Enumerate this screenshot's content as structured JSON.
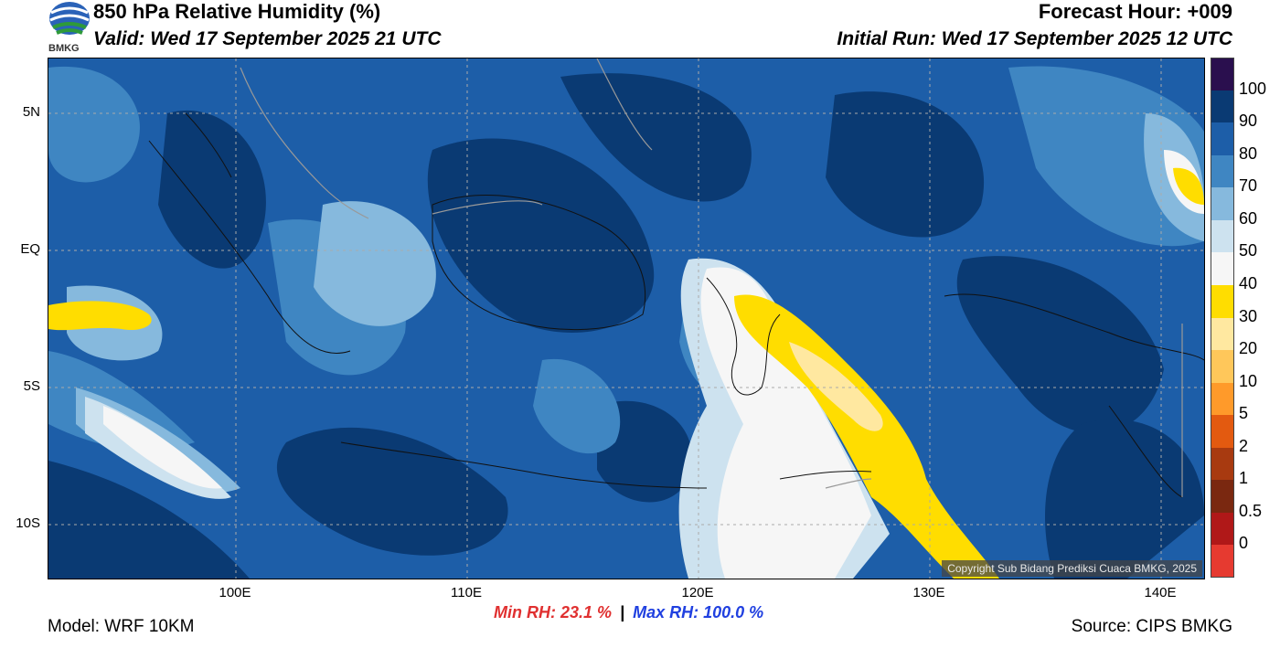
{
  "header": {
    "title": "850 hPa Relative Humidity (%)",
    "valid": "Valid: Wed 17 September 2025 21 UTC",
    "forecast_hour": "Forecast Hour: +009",
    "initial_run": "Initial Run: Wed 17 September 2025 12 UTC",
    "logo_text": "BMKG"
  },
  "map": {
    "copyright": "Copyright Sub Bidang Prediksi Cuaca BMKG, 2025",
    "lat_labels": [
      "5N",
      "EQ",
      "5S",
      "10S"
    ],
    "lon_labels": [
      "100E",
      "110E",
      "120E",
      "130E",
      "140E"
    ]
  },
  "colorbar": {
    "labels": [
      "100",
      "90",
      "80",
      "70",
      "60",
      "50",
      "40",
      "30",
      "20",
      "10",
      "5",
      "2",
      "1",
      "0.5",
      "0"
    ],
    "colors": [
      "#2a0f4e",
      "#0a3a73",
      "#1d5ea8",
      "#3f86c2",
      "#86b9dd",
      "#cde2ef",
      "#f6f6f6",
      "#ffdd00",
      "#ffe8a0",
      "#ffc75a",
      "#ff9a2a",
      "#e35a10",
      "#a83a10",
      "#7a2810",
      "#b01818",
      "#e63a30"
    ]
  },
  "stats": {
    "min": "Min RH:  23.1 %",
    "sep": "|",
    "max": "Max RH: 100.0 %"
  },
  "footer": {
    "model": "Model: WRF 10KM",
    "source": "Source: CIPS BMKG"
  }
}
